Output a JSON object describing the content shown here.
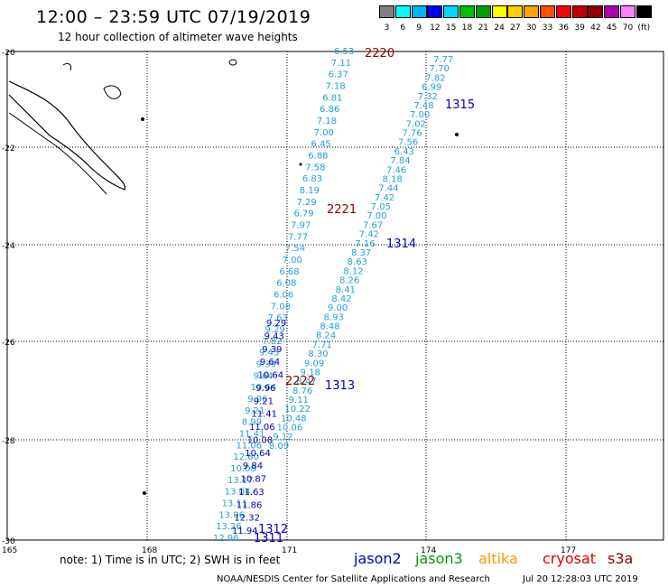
{
  "title": "12:00 – 23:59 UTC 07/19/2019",
  "subtitle": "12 hour collection of altimeter wave heights",
  "legend": {
    "labels": [
      "3",
      "6",
      "9",
      "12",
      "15",
      "18",
      "21",
      "24",
      "27",
      "30",
      "33",
      "36",
      "39",
      "42",
      "45",
      "70",
      "(ft)"
    ],
    "colors": [
      "#808080",
      "#00ffff",
      "#00b4ff",
      "#0000ff",
      "#00d8ff",
      "#00c000",
      "#00a000",
      "#ffff00",
      "#ffd000",
      "#ffa000",
      "#ff5000",
      "#ff0000",
      "#c00000",
      "#900000",
      "#b000b0",
      "#ff80ff",
      "#000000"
    ]
  },
  "axes": {
    "lat_labels": [
      "-20",
      "-22",
      "-24",
      "-26",
      "-28",
      "-30"
    ],
    "lon_labels": [
      "165",
      "168",
      "171",
      "174",
      "177"
    ]
  },
  "tracks": {
    "cryosat_a": [
      "6.53",
      "7.11",
      "6.37",
      "7.18",
      "6.81",
      "6.86",
      "7.18",
      "7.00",
      "6.45",
      "6.88",
      "7.58",
      "6.83",
      "8.19",
      "7.29",
      "6.79",
      "7.97",
      "7.77",
      "7.54",
      "7.00",
      "6.68",
      "6.08",
      "6.06",
      "7.08",
      "7.63",
      "9.29",
      "7.82",
      "9.43",
      "9.39",
      "9.64",
      "10.64",
      "9.96",
      "9.21",
      "8.99",
      "11.41",
      "11.06",
      "12.60",
      "10.08",
      "13.17",
      "13.04",
      "13.11",
      "13.06",
      "13.26",
      "12.96"
    ],
    "jason2_a": [
      "9.29",
      "9.43",
      "9.39",
      "9.64",
      "10.64",
      "9.96",
      "9.21",
      "11.41",
      "11.06",
      "10.08",
      "10.64",
      "9.84",
      "10.87",
      "11.63",
      "11.86",
      "12.32",
      "11.94"
    ],
    "track_b": [
      "7.77",
      "7.70",
      "7.82",
      "6.99",
      "7.32",
      "7.48",
      "7.00",
      "7.02",
      "7.76",
      "7.56",
      "6.43",
      "7.84",
      "7.46",
      "8.18",
      "7.44",
      "7.42",
      "7.05",
      "7.00",
      "7.67",
      "7.42",
      "7.16",
      "8.37",
      "8.63",
      "8.12",
      "8.26",
      "8.41",
      "8.42",
      "9.00",
      "8.93",
      "8.48",
      "8.24",
      "7.71",
      "8.30",
      "9.09",
      "9.18",
      "8.47",
      "8.76",
      "9.11",
      "10.22",
      "10.48",
      "10.06",
      "9.12",
      "8.09"
    ]
  },
  "time_labels": [
    {
      "text": "2220",
      "color": "#8b0000"
    },
    {
      "text": "1315",
      "color": "#0000c0"
    },
    {
      "text": "2221",
      "color": "#8b0000"
    },
    {
      "text": "1314",
      "color": "#0000c0"
    },
    {
      "text": "2222",
      "color": "#8b0000"
    },
    {
      "text": "1313",
      "color": "#0000c0"
    },
    {
      "text": "1312",
      "color": "#0000c0"
    },
    {
      "text": "1311",
      "color": "#0000c0"
    }
  ],
  "note": "note: 1) Time is in UTC; 2) SWH is in feet",
  "satellites": [
    {
      "name": "jason2",
      "color": "#0000c0"
    },
    {
      "name": "jason3",
      "color": "#00a000"
    },
    {
      "name": "altika",
      "color": "#ff9900"
    },
    {
      "name": "cryosat",
      "color": "#e00000"
    },
    {
      "name": "s3a",
      "color": "#8b0000"
    }
  ],
  "footer": "NOAA/NESDIS Center for Satellite Applications and Research",
  "stamp": "Jul 20 12:28:03 UTC 2019"
}
